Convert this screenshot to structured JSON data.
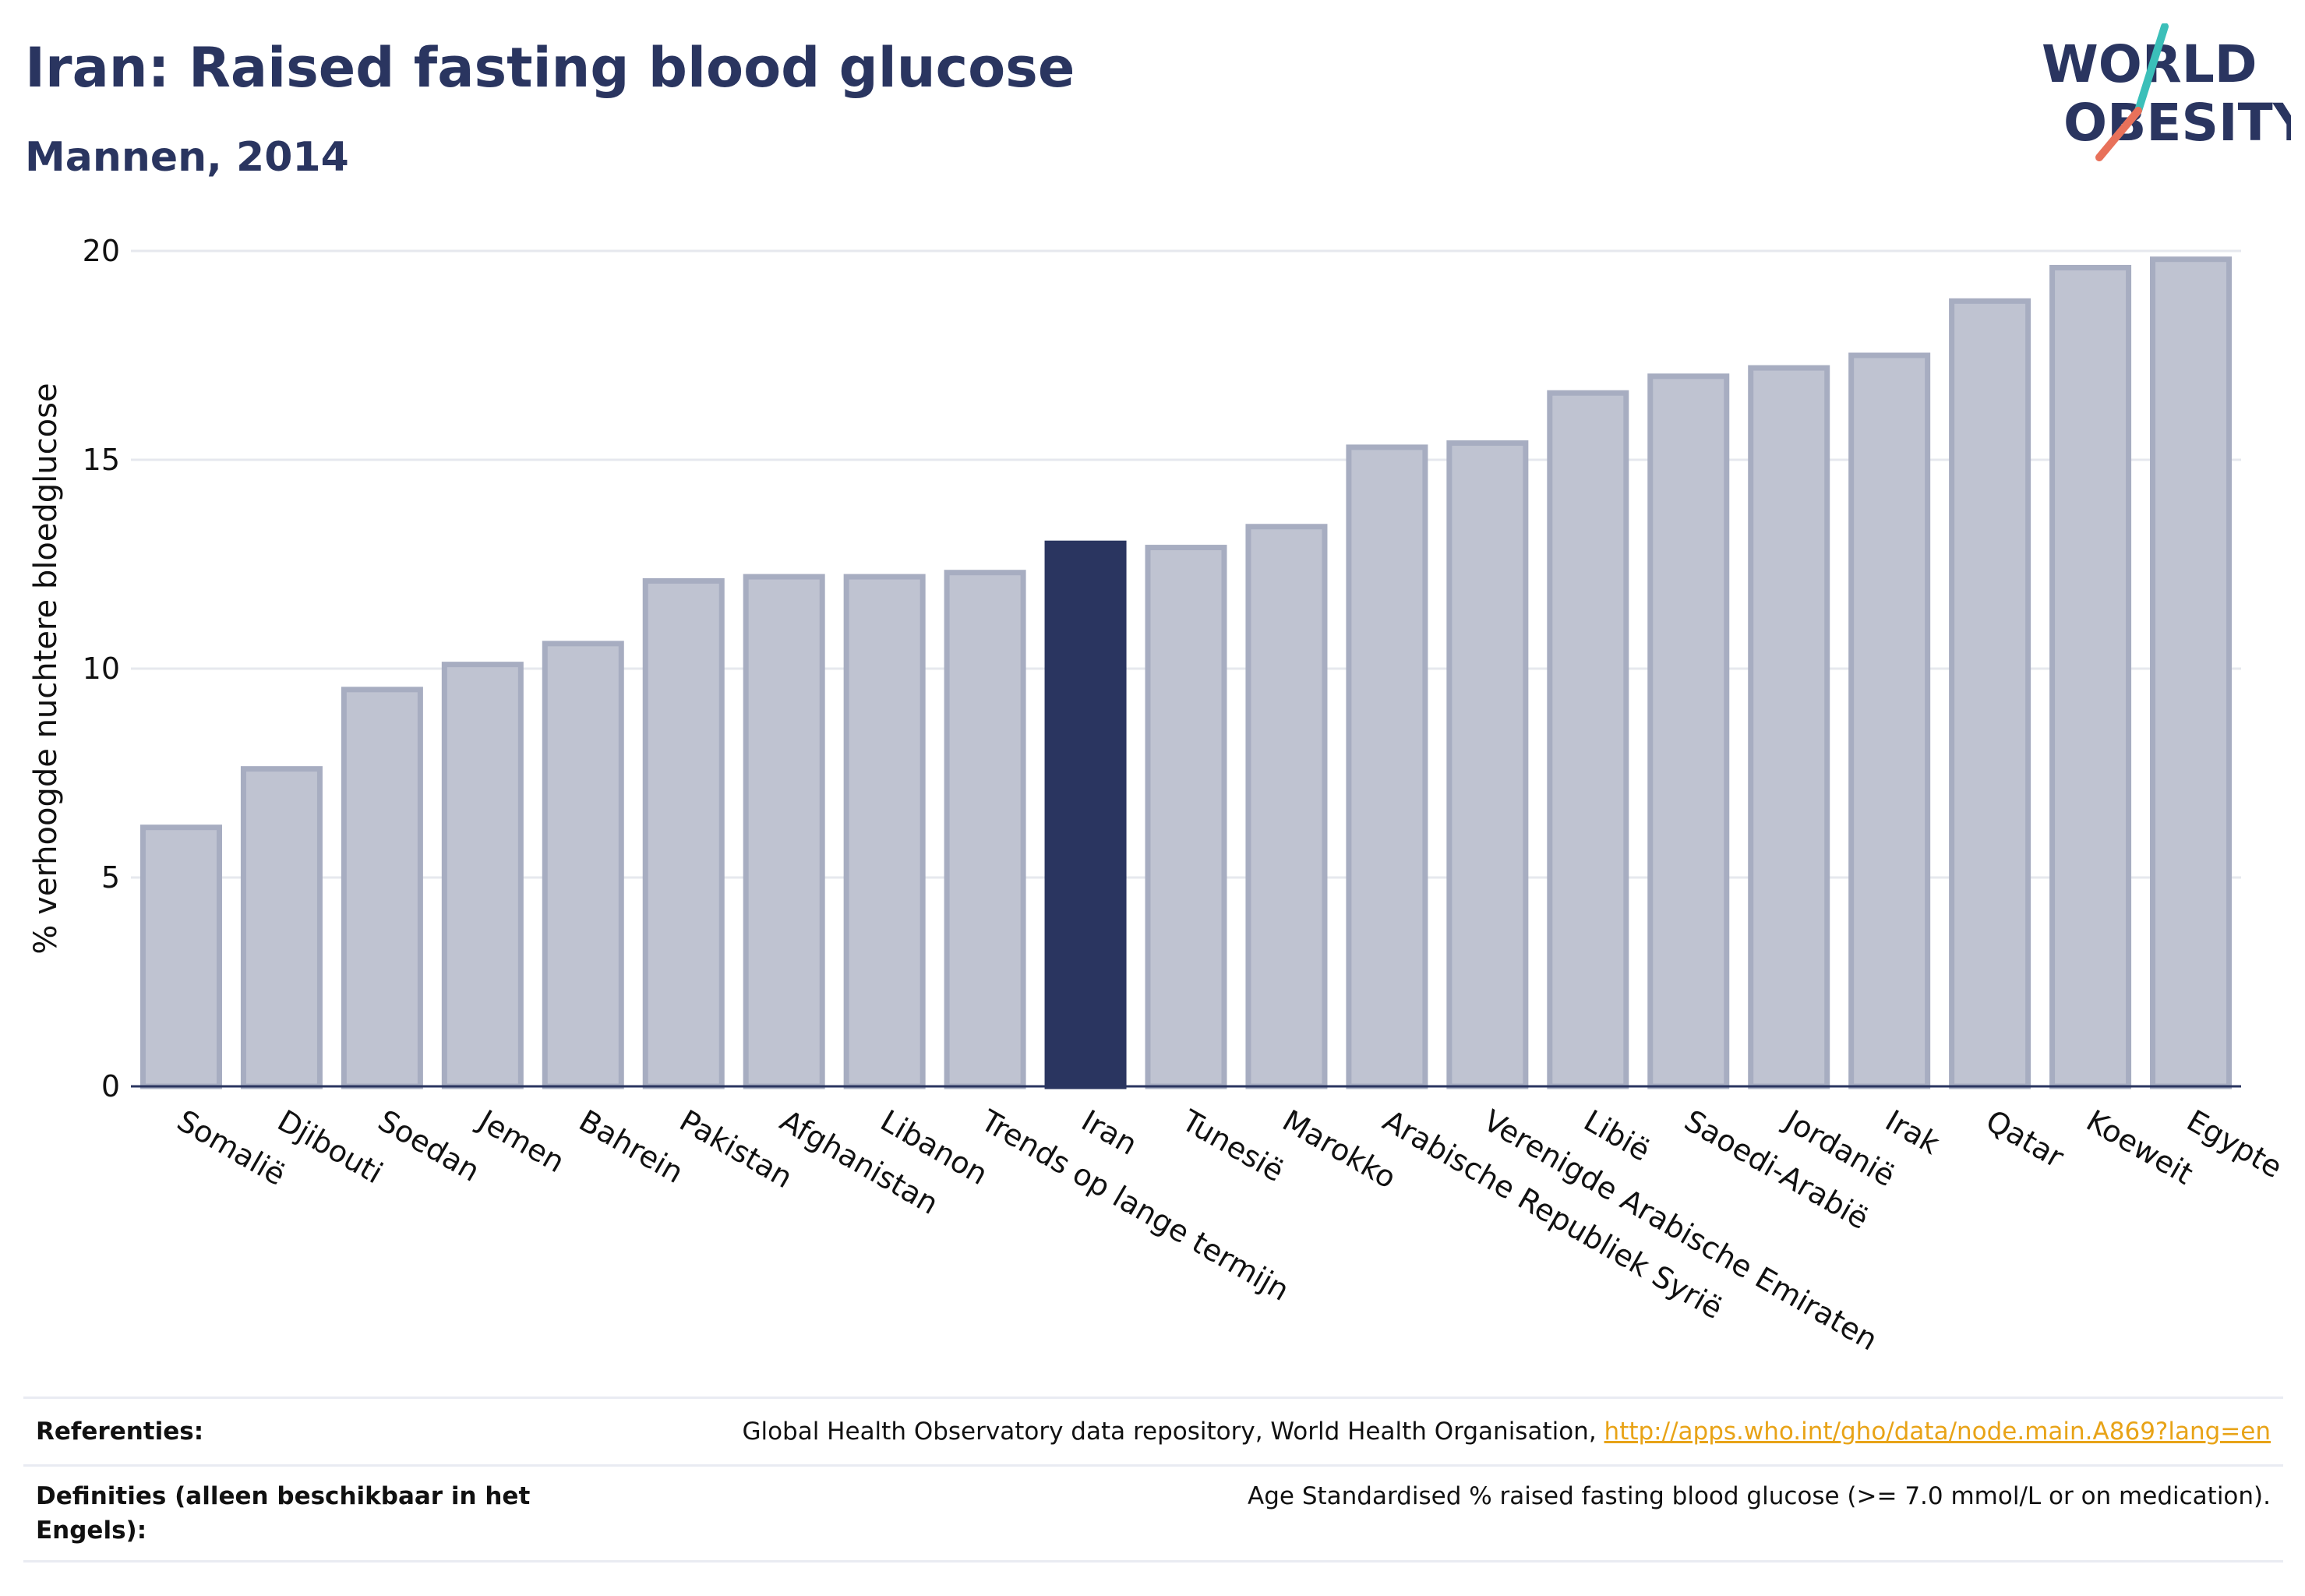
{
  "header": {
    "title": "Iran: Raised fasting blood glucose",
    "subtitle": "Mannen, 2014"
  },
  "logo": {
    "line1": "WORLD",
    "line2": "OBESITY",
    "colors": {
      "text": "#2a3560",
      "teal": "#3bbfb9",
      "coral": "#e8715a"
    }
  },
  "chart_data": {
    "type": "bar",
    "ylabel": "% verhoogde nuchtere bloedglucose",
    "xlabel": "",
    "ylim": [
      0,
      20
    ],
    "yticks": [
      0,
      5,
      10,
      15,
      20
    ],
    "grid": true,
    "highlight": "Iran",
    "colors": {
      "bar": "#bfc3d1",
      "bar_border": "#a7adc1",
      "highlight": "#2a3560",
      "grid": "#e6e8ee",
      "axis": "#2a3560"
    },
    "categories": [
      "Somalië",
      "Djibouti",
      "Soedan",
      "Jemen",
      "Bahrein",
      "Pakistan",
      "Afghanistan",
      "Libanon",
      "Trends op lange termijn",
      "Iran",
      "Tunesië",
      "Marokko",
      "Arabische Republiek Syrië",
      "Verenigde Arabische Emiraten",
      "Libië",
      "Saoedi-Arabië",
      "Jordanië",
      "Irak",
      "Qatar",
      "Koeweit",
      "Egypte"
    ],
    "values": [
      6.2,
      7.6,
      9.5,
      10.1,
      10.6,
      12.1,
      12.2,
      12.2,
      12.3,
      13.0,
      12.9,
      13.4,
      15.3,
      15.4,
      16.6,
      17.0,
      17.2,
      17.5,
      18.8,
      19.6,
      19.8
    ]
  },
  "references": {
    "refs_label": "Referenties:",
    "refs_text": "Global Health Observatory data repository, World Health Organisation, ",
    "refs_link": "http://apps.who.int/gho/data/node.main.A869?lang=en",
    "defs_label": "Definities (alleen beschikbaar in het Engels):",
    "defs_text": "Age Standardised % raised fasting blood glucose (>= 7.0 mmol/L or on medication)."
  }
}
